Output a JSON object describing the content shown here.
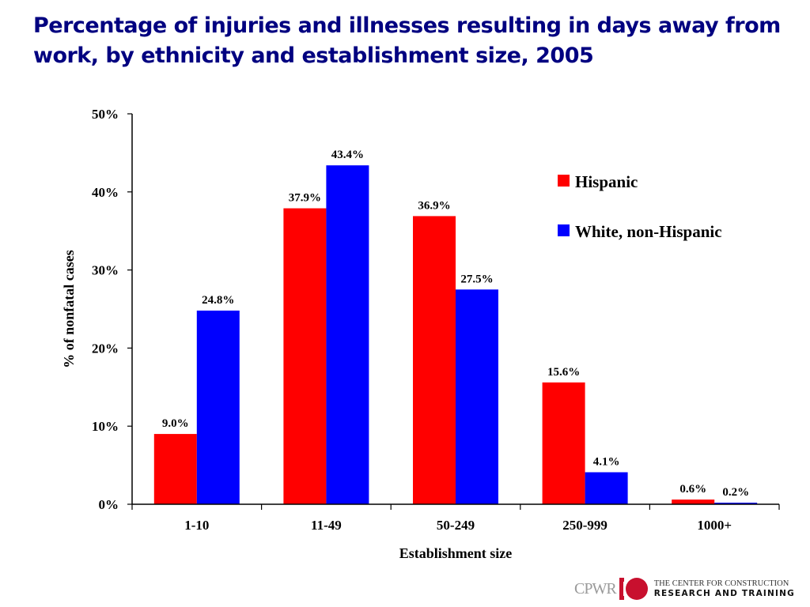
{
  "chart_data": {
    "type": "bar",
    "title": "Percentage of injuries and illnesses resulting in days away from work, by ethnicity and establishment size, 2005",
    "xlabel": "Establishment size",
    "ylabel": "% of nonfatal cases",
    "categories": [
      "1-10",
      "11-49",
      "50-249",
      "250-999",
      "1000+"
    ],
    "series": [
      {
        "name": "Hispanic",
        "color": "#ff0000",
        "values": [
          9.0,
          37.9,
          36.9,
          15.6,
          0.6
        ],
        "labels": [
          "9.0%",
          "37.9%",
          "36.9%",
          "15.6%",
          "0.6%"
        ]
      },
      {
        "name": "White, non-Hispanic",
        "color": "#0000ff",
        "values": [
          24.8,
          43.4,
          27.5,
          4.1,
          0.2
        ],
        "labels": [
          "24.8%",
          "43.4%",
          "27.5%",
          "4.1%",
          "0.2%"
        ]
      }
    ],
    "ylim": [
      0,
      50
    ],
    "yticks": [
      0,
      10,
      20,
      30,
      40,
      50
    ],
    "ytick_labels": [
      "0%",
      "10%",
      "20%",
      "30%",
      "40%",
      "50%"
    ],
    "grid": false,
    "legend_position": "top-right"
  },
  "logo": {
    "abbr": "CPWR",
    "line1": "THE CENTER FOR CONSTRUCTION",
    "line2": "RESEARCH AND TRAINING"
  }
}
